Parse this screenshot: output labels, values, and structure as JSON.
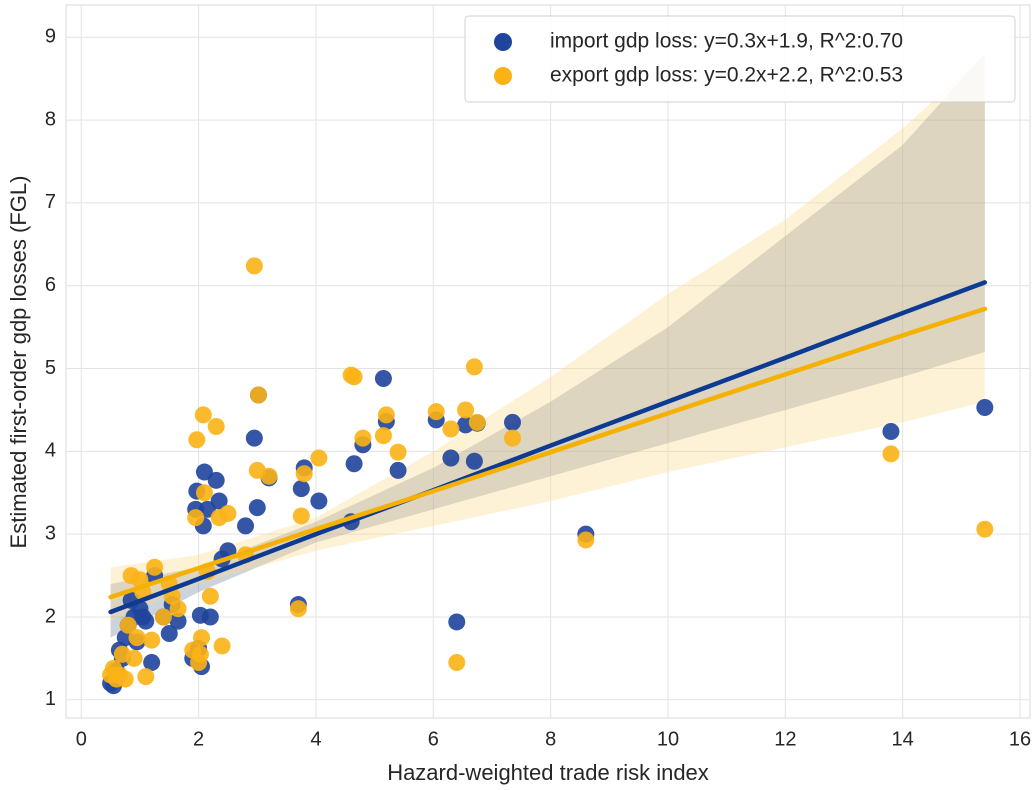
{
  "chart_data": {
    "type": "scatter",
    "x_label": "Hazard-weighted trade risk index",
    "y_label": "Estimated first-order gdp losses (FGL)",
    "xlim": [
      -0.26,
      16.17
    ],
    "ylim": [
      0.78,
      9.39
    ],
    "xticks": [
      0,
      2,
      4,
      6,
      8,
      10,
      12,
      14,
      16
    ],
    "yticks": [
      1,
      2,
      3,
      4,
      5,
      6,
      7,
      8,
      9
    ],
    "grid": true,
    "legend": "upper right",
    "x": [
      0.5,
      0.55,
      0.6,
      0.65,
      0.7,
      0.75,
      0.8,
      0.85,
      0.9,
      0.95,
      1.0,
      1.05,
      1.1,
      1.2,
      1.25,
      1.4,
      1.5,
      1.55,
      1.65,
      1.9,
      1.95,
      1.97,
      2.0,
      2.03,
      2.05,
      2.08,
      2.1,
      2.15,
      2.2,
      2.3,
      2.35,
      2.4,
      2.5,
      2.8,
      2.95,
      3.0,
      3.02,
      3.2,
      3.7,
      3.75,
      3.8,
      4.05,
      4.6,
      4.65,
      4.8,
      5.15,
      5.2,
      5.4,
      6.05,
      6.3,
      6.4,
      6.55,
      6.7,
      6.75,
      7.35,
      8.6,
      13.8,
      15.4
    ],
    "series": [
      {
        "name": "import gdp loss: y=0.3x+1.9, R^2:0.70",
        "color": "#1f449c",
        "line_color": "#0d3a92",
        "band_color": "#5a6e8c",
        "values": [
          1.2,
          1.17,
          1.35,
          1.6,
          1.5,
          1.75,
          1.9,
          2.2,
          2.0,
          1.7,
          2.1,
          2.0,
          1.95,
          1.45,
          2.5,
          2.0,
          1.8,
          2.15,
          1.95,
          1.5,
          3.3,
          3.52,
          1.62,
          2.02,
          1.4,
          3.1,
          3.75,
          3.3,
          2.0,
          3.65,
          3.4,
          2.7,
          2.8,
          3.1,
          4.16,
          3.32,
          4.68,
          3.68,
          2.15,
          3.55,
          3.8,
          3.4,
          3.15,
          3.85,
          4.08,
          4.88,
          4.36,
          3.77,
          4.38,
          3.92,
          1.94,
          4.32,
          3.88,
          4.34,
          4.35,
          3.0,
          4.24,
          4.53
        ],
        "fit_x": [
          0.5,
          2,
          4,
          6,
          8,
          10,
          12,
          14,
          15.4
        ],
        "fit_values": [
          2.06,
          2.46,
          3.0,
          3.53,
          4.07,
          4.6,
          5.13,
          5.67,
          6.04
        ],
        "fit_lower": [
          1.75,
          2.3,
          2.9,
          3.3,
          3.7,
          4.1,
          4.5,
          4.9,
          5.2
        ],
        "fit_upper": [
          2.4,
          2.6,
          3.15,
          3.8,
          4.6,
          5.5,
          6.6,
          7.7,
          8.8
        ]
      },
      {
        "name": "export gdp loss: y=0.2x+2.2, R^2:0.53",
        "color": "#fbb215",
        "line_color": "#f5b000",
        "band_color": "#fbd98a",
        "values": [
          1.3,
          1.38,
          1.25,
          1.3,
          1.55,
          1.25,
          1.9,
          2.5,
          1.5,
          1.75,
          2.45,
          2.3,
          1.28,
          1.72,
          2.6,
          2.0,
          2.4,
          2.25,
          2.1,
          1.6,
          3.2,
          4.14,
          1.45,
          1.55,
          1.75,
          4.44,
          3.5,
          2.55,
          2.25,
          4.3,
          3.2,
          1.65,
          3.25,
          2.75,
          6.24,
          3.77,
          4.68,
          3.7,
          2.1,
          3.22,
          3.73,
          3.92,
          4.92,
          4.9,
          4.16,
          4.19,
          4.44,
          3.99,
          4.48,
          4.27,
          1.45,
          4.5,
          5.02,
          4.35,
          4.16,
          2.93,
          3.97,
          3.06
        ],
        "fit_x": [
          0.5,
          2,
          4,
          6,
          8,
          10,
          12,
          14,
          15.4
        ],
        "fit_values": [
          2.24,
          2.59,
          3.06,
          3.52,
          3.99,
          4.46,
          4.93,
          5.4,
          5.72
        ],
        "fit_lower": [
          1.95,
          2.4,
          2.8,
          3.1,
          3.4,
          3.75,
          4.05,
          4.35,
          4.6
        ],
        "fit_upper": [
          2.6,
          2.75,
          3.2,
          4.0,
          4.9,
          5.9,
          6.8,
          7.9,
          8.8
        ]
      }
    ]
  }
}
